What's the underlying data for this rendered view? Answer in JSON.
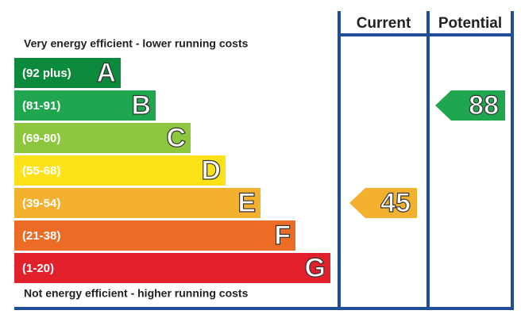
{
  "header": {
    "current": "Current",
    "potential": "Potential"
  },
  "top_note": "Very energy efficient - lower running costs",
  "bottom_note": "Not energy efficient - higher running costs",
  "bands": [
    {
      "range": "(92 plus)",
      "letter": "A",
      "color": "#0c8a3c"
    },
    {
      "range": "(81-91)",
      "letter": "B",
      "color": "#1fa64e"
    },
    {
      "range": "(69-80)",
      "letter": "C",
      "color": "#8dc63f"
    },
    {
      "range": "(55-68)",
      "letter": "D",
      "color": "#fde21a"
    },
    {
      "range": "(39-54)",
      "letter": "E",
      "color": "#f4b02f"
    },
    {
      "range": "(21-38)",
      "letter": "F",
      "color": "#ec6b25"
    },
    {
      "range": "(1-20)",
      "letter": "G",
      "color": "#e2202c"
    }
  ],
  "ratings": {
    "current": 45,
    "potential": 88
  }
}
